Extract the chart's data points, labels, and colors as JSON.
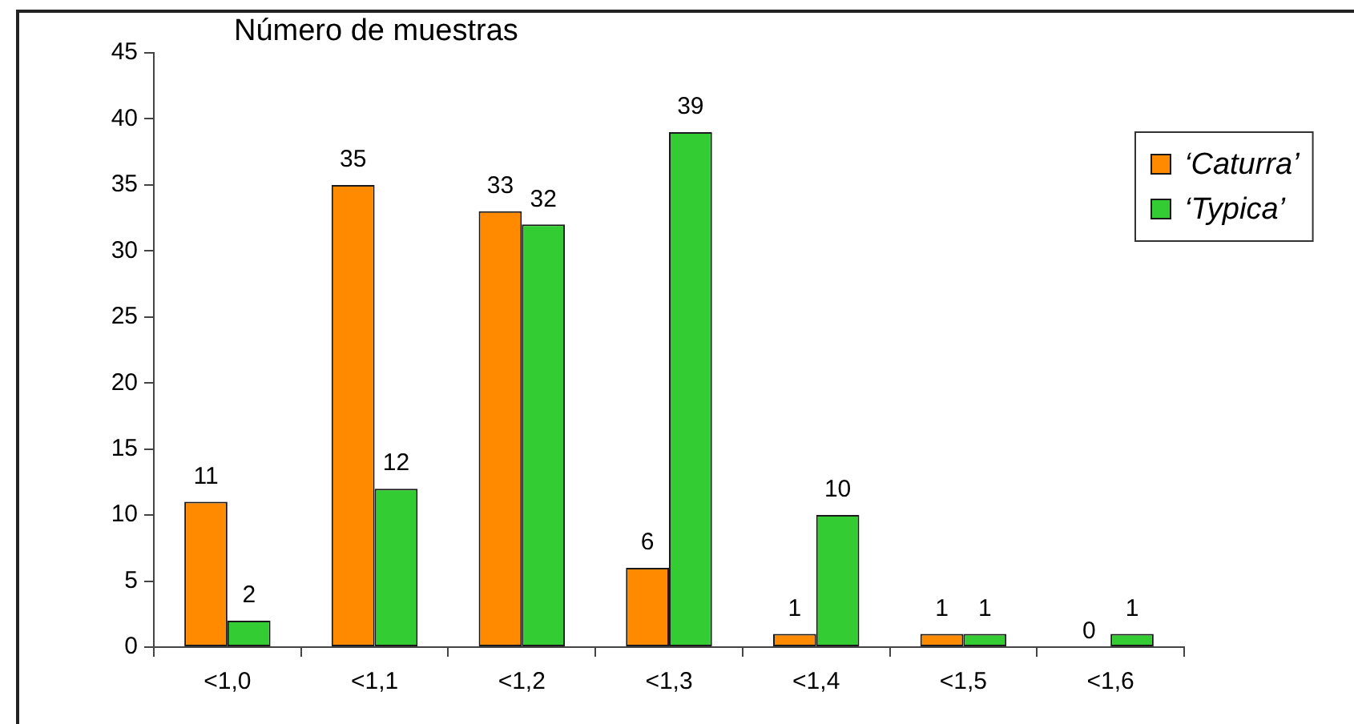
{
  "chart_data": {
    "type": "bar",
    "ylabel": "Número de muestras",
    "categories": [
      "<1,0",
      "<1,1",
      "<1,2",
      "<1,3",
      "<1,4",
      "<1,5",
      "<1,6"
    ],
    "series": [
      {
        "name": "‘Caturra’",
        "color": "#ff8a00",
        "values": [
          11,
          35,
          33,
          6,
          1,
          1,
          0
        ]
      },
      {
        "name": "‘Typica’",
        "color": "#33cc33",
        "values": [
          2,
          12,
          32,
          39,
          10,
          1,
          1
        ]
      }
    ],
    "ylim": [
      0,
      45
    ],
    "yticks": [
      0,
      5,
      10,
      15,
      20,
      25,
      30,
      35,
      40,
      45
    ],
    "data_labels": true,
    "legend": "right"
  }
}
